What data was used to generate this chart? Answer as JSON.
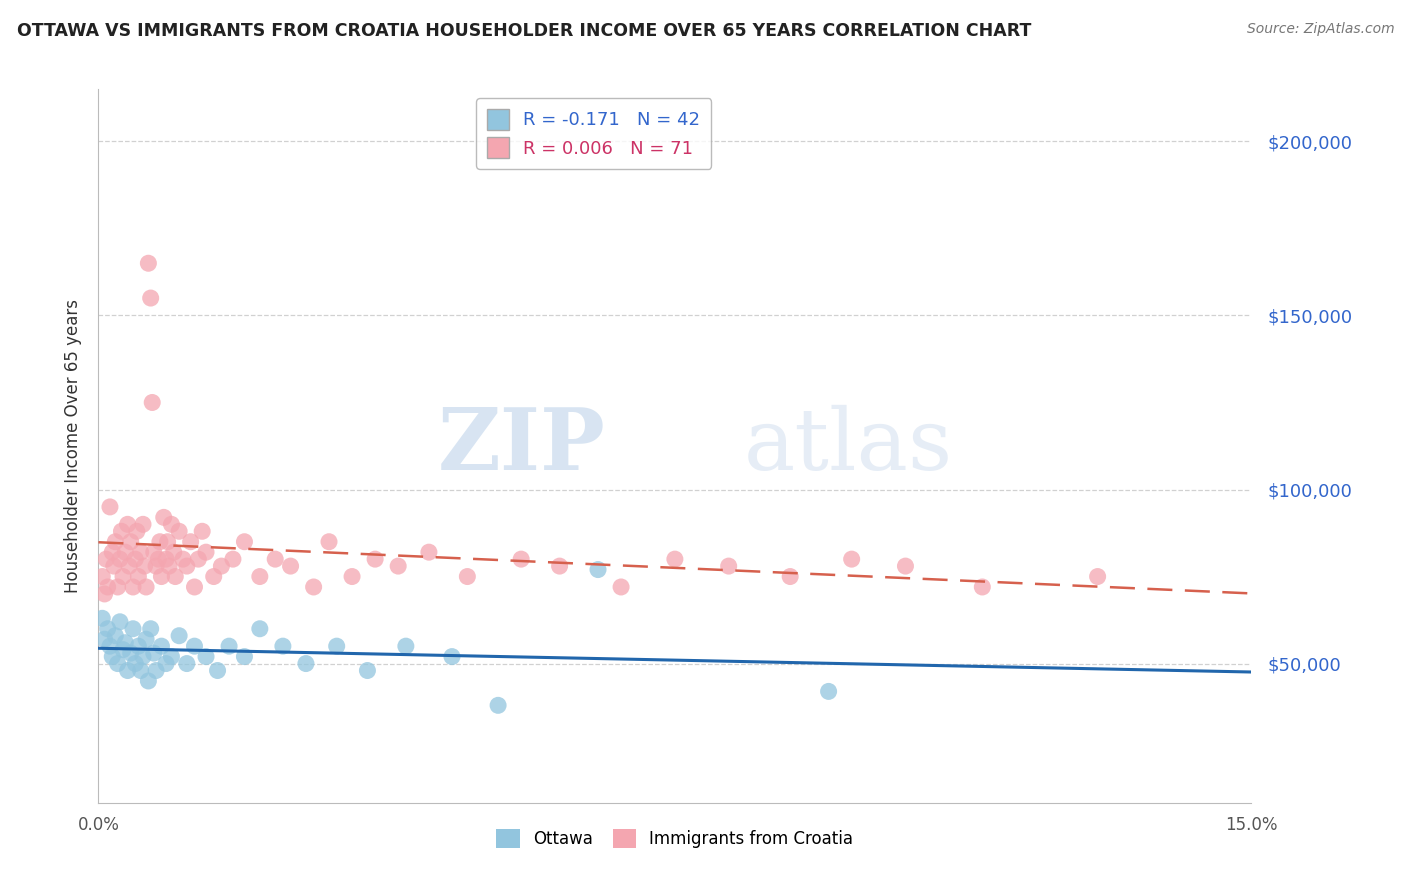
{
  "title": "OTTAWA VS IMMIGRANTS FROM CROATIA HOUSEHOLDER INCOME OVER 65 YEARS CORRELATION CHART",
  "source": "Source: ZipAtlas.com",
  "ylabel": "Householder Income Over 65 years",
  "ytick_labels": [
    "$50,000",
    "$100,000",
    "$150,000",
    "$200,000"
  ],
  "ytick_values": [
    50000,
    100000,
    150000,
    200000
  ],
  "xmin": 0.0,
  "xmax": 15.0,
  "ymin": 10000,
  "ymax": 215000,
  "ottawa_R": -0.171,
  "ottawa_N": 42,
  "croatia_R": 0.006,
  "croatia_N": 71,
  "ottawa_color": "#92c5de",
  "croatia_color": "#f4a6b0",
  "ottawa_line_color": "#2166ac",
  "croatia_line_color": "#d6604d",
  "ottawa_x": [
    0.05,
    0.08,
    0.12,
    0.15,
    0.18,
    0.22,
    0.25,
    0.28,
    0.32,
    0.35,
    0.38,
    0.42,
    0.45,
    0.48,
    0.52,
    0.55,
    0.58,
    0.62,
    0.65,
    0.68,
    0.72,
    0.75,
    0.82,
    0.88,
    0.95,
    1.05,
    1.15,
    1.25,
    1.4,
    1.55,
    1.7,
    1.9,
    2.1,
    2.4,
    2.7,
    3.1,
    3.5,
    4.0,
    4.6,
    5.2,
    6.5,
    9.5
  ],
  "ottawa_y": [
    63000,
    57000,
    60000,
    55000,
    52000,
    58000,
    50000,
    62000,
    54000,
    56000,
    48000,
    53000,
    60000,
    50000,
    55000,
    48000,
    52000,
    57000,
    45000,
    60000,
    53000,
    48000,
    55000,
    50000,
    52000,
    58000,
    50000,
    55000,
    52000,
    48000,
    55000,
    52000,
    60000,
    55000,
    50000,
    55000,
    48000,
    55000,
    52000,
    38000,
    77000,
    42000
  ],
  "croatia_x": [
    0.05,
    0.08,
    0.1,
    0.12,
    0.15,
    0.18,
    0.2,
    0.22,
    0.25,
    0.28,
    0.3,
    0.32,
    0.35,
    0.38,
    0.4,
    0.42,
    0.45,
    0.48,
    0.5,
    0.52,
    0.55,
    0.58,
    0.6,
    0.62,
    0.65,
    0.68,
    0.7,
    0.72,
    0.75,
    0.78,
    0.8,
    0.82,
    0.85,
    0.88,
    0.9,
    0.92,
    0.95,
    0.98,
    1.0,
    1.05,
    1.1,
    1.15,
    1.2,
    1.25,
    1.3,
    1.35,
    1.4,
    1.5,
    1.6,
    1.75,
    1.9,
    2.1,
    2.3,
    2.5,
    2.8,
    3.0,
    3.3,
    3.6,
    3.9,
    4.3,
    4.8,
    5.5,
    6.0,
    6.8,
    7.5,
    8.2,
    9.0,
    9.8,
    10.5,
    11.5,
    13.0
  ],
  "croatia_y": [
    75000,
    70000,
    80000,
    72000,
    95000,
    82000,
    78000,
    85000,
    72000,
    80000,
    88000,
    75000,
    82000,
    90000,
    78000,
    85000,
    72000,
    80000,
    88000,
    75000,
    82000,
    90000,
    78000,
    72000,
    165000,
    155000,
    125000,
    82000,
    78000,
    80000,
    85000,
    75000,
    92000,
    80000,
    85000,
    78000,
    90000,
    82000,
    75000,
    88000,
    80000,
    78000,
    85000,
    72000,
    80000,
    88000,
    82000,
    75000,
    78000,
    80000,
    85000,
    75000,
    80000,
    78000,
    72000,
    85000,
    75000,
    80000,
    78000,
    82000,
    75000,
    80000,
    78000,
    72000,
    80000,
    78000,
    75000,
    80000,
    78000,
    72000,
    75000
  ]
}
